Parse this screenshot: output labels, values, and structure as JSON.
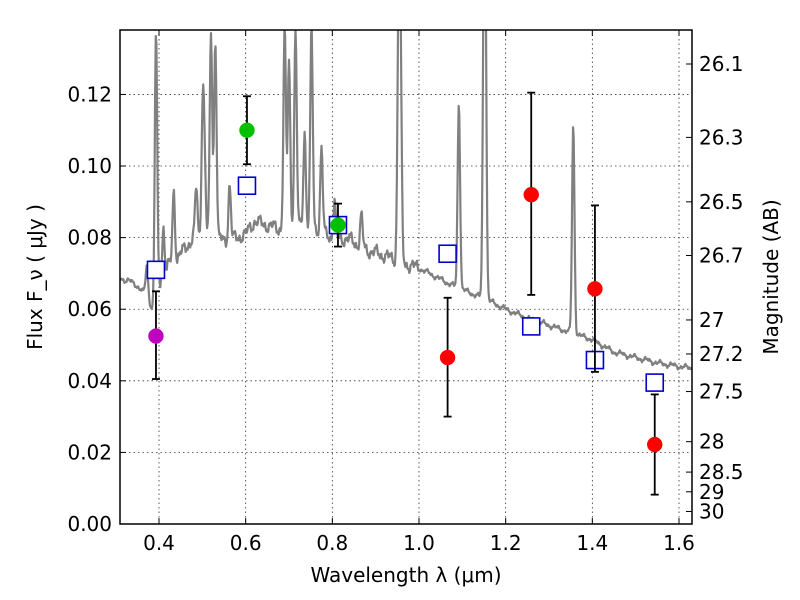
{
  "chart_data": {
    "type": "scatter",
    "xlabel": "Wavelength  λ (μm)",
    "ylabel": "Flux  F_ν  ( μJy )",
    "ylabel_right": "Magnitude (AB)",
    "xlim": [
      0.31,
      1.63
    ],
    "ylim": [
      0.0,
      0.138
    ],
    "grid": true,
    "x_ticks": [
      0.4,
      0.6,
      0.8,
      1.0,
      1.2,
      1.4,
      1.6
    ],
    "x_tick_labels": [
      "0.4",
      "0.6",
      "0.8",
      "1.0",
      "1.2",
      "1.4",
      "1.6"
    ],
    "y_ticks": [
      0.0,
      0.02,
      0.04,
      0.06,
      0.08,
      0.1,
      0.12
    ],
    "y_tick_labels": [
      "0.00",
      "0.02",
      "0.04",
      "0.06",
      "0.08",
      "0.10",
      "0.12"
    ],
    "mag_ticks": [
      {
        "label": "26.1",
        "flux": 0.1285
      },
      {
        "label": "26.3",
        "flux": 0.108
      },
      {
        "label": "26.5",
        "flux": 0.09
      },
      {
        "label": "26.7",
        "flux": 0.075
      },
      {
        "label": "27",
        "flux": 0.057
      },
      {
        "label": "27.2",
        "flux": 0.0475
      },
      {
        "label": "27.5",
        "flux": 0.037
      },
      {
        "label": "28",
        "flux": 0.023
      },
      {
        "label": "28.5",
        "flux": 0.0145
      },
      {
        "label": "29",
        "flux": 0.009
      },
      {
        "label": "30",
        "flux": 0.0035
      }
    ],
    "observed_points": [
      {
        "x": 0.393,
        "y": 0.0525,
        "err_low": 0.0405,
        "err_high": 0.065,
        "color": "#bf00bf"
      },
      {
        "x": 0.603,
        "y": 0.11,
        "err_low": 0.1005,
        "err_high": 0.1195,
        "color": "#00c000"
      },
      {
        "x": 0.813,
        "y": 0.0835,
        "err_low": 0.0775,
        "err_high": 0.0895,
        "color": "#00c000"
      },
      {
        "x": 1.066,
        "y": 0.0465,
        "err_low": 0.03,
        "err_high": 0.0632,
        "color": "#ff0000"
      },
      {
        "x": 1.259,
        "y": 0.092,
        "err_low": 0.064,
        "err_high": 0.1205,
        "color": "#ff0000"
      },
      {
        "x": 1.406,
        "y": 0.0657,
        "err_low": 0.0425,
        "err_high": 0.089,
        "color": "#ff0000"
      },
      {
        "x": 1.544,
        "y": 0.0222,
        "err_low": 0.0082,
        "err_high": 0.0362,
        "color": "#ff0000"
      }
    ],
    "model_photometry": [
      {
        "x": 0.393,
        "y": 0.071
      },
      {
        "x": 0.603,
        "y": 0.0945
      },
      {
        "x": 0.813,
        "y": 0.0835
      },
      {
        "x": 1.066,
        "y": 0.0755
      },
      {
        "x": 1.259,
        "y": 0.0552
      },
      {
        "x": 1.406,
        "y": 0.0458
      },
      {
        "x": 1.544,
        "y": 0.0395
      }
    ],
    "model_spectrum_continuum": [
      [
        0.31,
        0.0685
      ],
      [
        0.33,
        0.068
      ],
      [
        0.35,
        0.0665
      ],
      [
        0.37,
        0.064
      ],
      [
        0.385,
        0.06
      ],
      [
        0.39,
        0.057
      ],
      [
        0.4,
        0.066
      ],
      [
        0.42,
        0.072
      ],
      [
        0.44,
        0.074
      ],
      [
        0.46,
        0.077
      ],
      [
        0.48,
        0.08
      ],
      [
        0.5,
        0.079
      ],
      [
        0.52,
        0.081
      ],
      [
        0.55,
        0.079
      ],
      [
        0.58,
        0.08
      ],
      [
        0.6,
        0.081
      ],
      [
        0.62,
        0.0845
      ],
      [
        0.65,
        0.0835
      ],
      [
        0.68,
        0.0825
      ],
      [
        0.72,
        0.0835
      ],
      [
        0.76,
        0.0825
      ],
      [
        0.8,
        0.08
      ],
      [
        0.84,
        0.0795
      ],
      [
        0.88,
        0.0765
      ],
      [
        0.92,
        0.075
      ],
      [
        0.96,
        0.073
      ],
      [
        1.0,
        0.0715
      ],
      [
        1.04,
        0.069
      ],
      [
        1.08,
        0.0665
      ],
      [
        1.12,
        0.0645
      ],
      [
        1.16,
        0.0625
      ],
      [
        1.2,
        0.06
      ],
      [
        1.25,
        0.0575
      ],
      [
        1.3,
        0.0555
      ],
      [
        1.35,
        0.0535
      ],
      [
        1.4,
        0.0515
      ],
      [
        1.45,
        0.048
      ],
      [
        1.5,
        0.0465
      ],
      [
        1.55,
        0.045
      ],
      [
        1.6,
        0.044
      ],
      [
        1.63,
        0.0435
      ]
    ],
    "model_spectrum_lines": [
      {
        "x": 0.372,
        "peak": 0.072
      },
      {
        "x": 0.393,
        "peak": 0.138
      },
      {
        "x": 0.41,
        "peak": 0.083
      },
      {
        "x": 0.434,
        "peak": 0.093
      },
      {
        "x": 0.486,
        "peak": 0.094
      },
      {
        "x": 0.5007,
        "peak": 0.115
      },
      {
        "x": 0.505,
        "peak": 0.1
      },
      {
        "x": 0.52,
        "peak": 0.138
      },
      {
        "x": 0.53,
        "peak": 0.136
      },
      {
        "x": 0.563,
        "peak": 0.095
      },
      {
        "x": 0.655,
        "peak": 0.083
      },
      {
        "x": 0.69,
        "peak": 0.138
      },
      {
        "x": 0.7,
        "peak": 0.13
      },
      {
        "x": 0.715,
        "peak": 0.138
      },
      {
        "x": 0.736,
        "peak": 0.11
      },
      {
        "x": 0.752,
        "peak": 0.138
      },
      {
        "x": 0.775,
        "peak": 0.105
      },
      {
        "x": 0.805,
        "peak": 0.09
      },
      {
        "x": 0.867,
        "peak": 0.086
      },
      {
        "x": 0.953,
        "peak": 0.138
      },
      {
        "x": 0.957,
        "peak": 0.13
      },
      {
        "x": 1.092,
        "peak": 0.118
      },
      {
        "x": 1.15,
        "peak": 0.138
      },
      {
        "x": 1.153,
        "peak": 0.132
      },
      {
        "x": 1.356,
        "peak": 0.1115
      }
    ],
    "colors": {
      "spectrum": "#808080",
      "model_box": "#0000cc",
      "errorbar": "#000000",
      "grid": "#000000"
    }
  }
}
